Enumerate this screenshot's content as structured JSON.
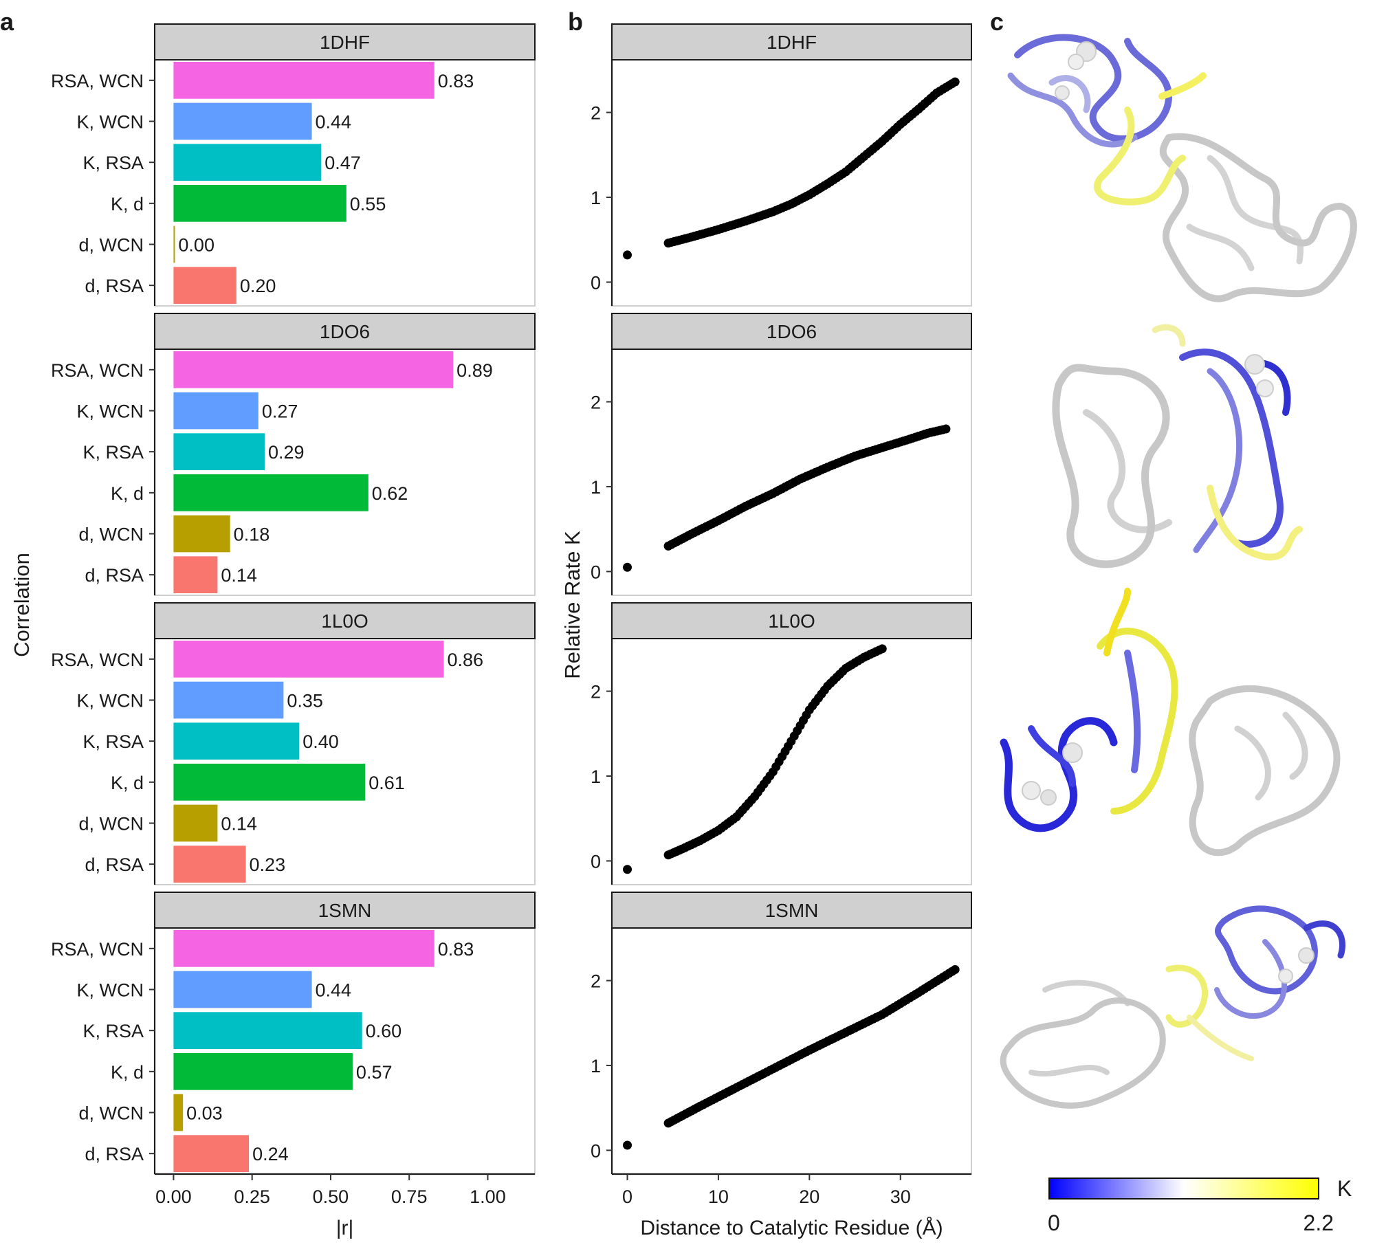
{
  "panel_labels": [
    "a",
    "b",
    "c"
  ],
  "chart_data": [
    {
      "type": "bar",
      "orientation": "horizontal",
      "facets": [
        "1DHF",
        "1DO6",
        "1L0O",
        "1SMN"
      ],
      "categories": [
        "RSA, WCN",
        "K, WCN",
        "K, RSA",
        "K, d",
        "d, WCN",
        "d, RSA"
      ],
      "category_colors": [
        "#f564e3",
        "#619cff",
        "#00bfc4",
        "#00ba38",
        "#b79f00",
        "#f8766d"
      ],
      "series": [
        {
          "facet": "1DHF",
          "values": [
            0.83,
            0.44,
            0.47,
            0.55,
            0.0,
            0.2
          ],
          "labels": [
            "0.83",
            "0.44",
            "0.47",
            "0.55",
            "0.00",
            "0.20"
          ]
        },
        {
          "facet": "1DO6",
          "values": [
            0.89,
            0.27,
            0.29,
            0.62,
            0.18,
            0.14
          ],
          "labels": [
            "0.89",
            "0.27",
            "0.29",
            "0.62",
            "0.18",
            "0.14"
          ]
        },
        {
          "facet": "1L0O",
          "values": [
            0.86,
            0.35,
            0.4,
            0.61,
            0.14,
            0.23
          ],
          "labels": [
            "0.86",
            "0.35",
            "0.40",
            "0.61",
            "0.14",
            "0.23"
          ]
        },
        {
          "facet": "1SMN",
          "values": [
            0.83,
            0.44,
            0.6,
            0.57,
            0.03,
            0.24
          ],
          "labels": [
            "0.83",
            "0.44",
            "0.60",
            "0.57",
            "0.03",
            "0.24"
          ]
        }
      ],
      "xlabel": "|r|",
      "ylabel": "Correlation",
      "xlim": [
        -0.06,
        1.15
      ],
      "xticks": [
        0,
        0.25,
        0.5,
        0.75,
        1.0
      ],
      "xtick_labels": [
        "0.00",
        "0.25",
        "0.50",
        "0.75",
        "1.00"
      ],
      "grid": false
    },
    {
      "type": "scatter",
      "facets": [
        "1DHF",
        "1DO6",
        "1L0O",
        "1SMN"
      ],
      "series": [
        {
          "facet": "1DHF",
          "x": [
            0,
            4.5,
            7,
            10,
            13,
            16,
            18,
            20,
            22,
            24,
            26,
            28,
            30,
            32,
            34,
            36
          ],
          "y": [
            0.32,
            0.46,
            0.53,
            0.62,
            0.72,
            0.83,
            0.92,
            1.03,
            1.16,
            1.3,
            1.48,
            1.66,
            1.86,
            2.04,
            2.23,
            2.36
          ]
        },
        {
          "facet": "1DO6",
          "x": [
            0,
            4.5,
            7,
            10,
            13,
            16,
            19,
            22,
            25,
            28,
            31,
            33,
            35
          ],
          "y": [
            0.05,
            0.3,
            0.44,
            0.6,
            0.77,
            0.92,
            1.09,
            1.23,
            1.36,
            1.46,
            1.56,
            1.63,
            1.68
          ]
        },
        {
          "facet": "1L0O",
          "x": [
            0,
            4.5,
            6,
            8,
            10,
            12,
            14,
            16,
            18,
            20,
            22,
            24,
            26,
            28
          ],
          "y": [
            -0.1,
            0.07,
            0.14,
            0.24,
            0.36,
            0.52,
            0.76,
            1.05,
            1.41,
            1.78,
            2.06,
            2.27,
            2.4,
            2.5
          ]
        },
        {
          "facet": "1SMN",
          "x": [
            0,
            4.5,
            8,
            12,
            16,
            20,
            24,
            28,
            32,
            36
          ],
          "y": [
            0.06,
            0.32,
            0.52,
            0.74,
            0.96,
            1.18,
            1.39,
            1.6,
            1.86,
            2.13
          ]
        }
      ],
      "xlabel": "Distance to Catalytic Residue (Å)",
      "ylabel": "Relative Rate K",
      "xlim": [
        -1.7,
        37.8
      ],
      "ylim": [
        -0.28,
        2.62
      ],
      "xticks": [
        0,
        10,
        20,
        30
      ],
      "yticks": [
        0,
        1,
        2
      ],
      "grid": false
    }
  ],
  "structures": {
    "colorbar": {
      "label": "K",
      "min_label": "0",
      "max_label": "2.2",
      "colors": [
        "#0000ff",
        "#ffffff",
        "#ffff00"
      ]
    }
  }
}
